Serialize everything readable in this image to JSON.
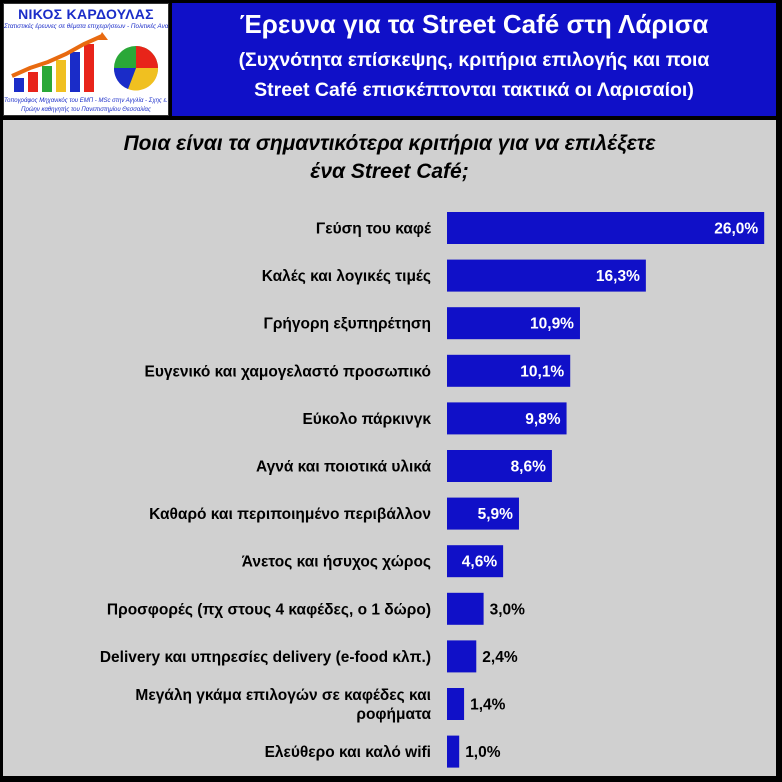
{
  "logo": {
    "name": "ΝΙΚΟΣ ΚΑΡΔΟΥΛΑΣ",
    "tagline": "Στατιστικές έρευνες σε θέματα επιχειρήσεων - Πολιτικές Αναλύσεις",
    "credentials": "Τοπογράφος Μηχανικός του ΕΜΠ - MSc στην Αγγλία - Σχης ε.α.",
    "former": "Πρώην καθηγητής του Πανεπιστημίου Θεσσαλίας"
  },
  "header": {
    "title": "Έρευνα για τα Street Café στη Λάρισα",
    "subtitle_line1": "(Συχνότητα επίσκεψης, κριτήρια επιλογής και ποια",
    "subtitle_line2": "Street Café επισκέπτονται τακτικά οι Λαρισαίοι)"
  },
  "colors": {
    "bar": "#1010c8",
    "header_bg": "#1010c8",
    "panel_bg": "#d0d0d0"
  },
  "chart_data": {
    "type": "bar",
    "orientation": "horizontal",
    "title_line1": "Ποια είναι τα σημαντικότερα κριτήρια για να επιλέξετε",
    "title_line2": "ένα Street Café;",
    "categories": [
      [
        "Γεύση του καφέ"
      ],
      [
        "Καλές και λογικές τιμές"
      ],
      [
        "Γρήγορη εξυπηρέτηση"
      ],
      [
        "Ευγενικό και χαμογελαστό προσωπικό"
      ],
      [
        "Εύκολο πάρκινγκ"
      ],
      [
        "Αγνά και ποιοτικά υλικά"
      ],
      [
        "Καθαρό και περιποιημένο περιβάλλον"
      ],
      [
        "Άνετος και ήσυχος χώρος"
      ],
      [
        "Προσφορές (πχ στους 4 καφέδες, ο 1 δώρο)"
      ],
      [
        "Delivery και υπηρεσίες delivery (e-food κλπ.)"
      ],
      [
        "Μεγάλη γκάμα επιλογών σε καφέδες και",
        "ροφήματα"
      ],
      [
        "Ελεύθερο και καλό wifi"
      ]
    ],
    "values": [
      26.0,
      16.3,
      10.9,
      10.1,
      9.8,
      8.6,
      5.9,
      4.6,
      3.0,
      2.4,
      1.4,
      1.0
    ],
    "value_labels": [
      "26,0%",
      "16,3%",
      "10,9%",
      "10,1%",
      "9,8%",
      "8,6%",
      "5,9%",
      "4,6%",
      "3,0%",
      "2,4%",
      "1,4%",
      "1,0%"
    ],
    "grid": false,
    "legend": "none"
  }
}
